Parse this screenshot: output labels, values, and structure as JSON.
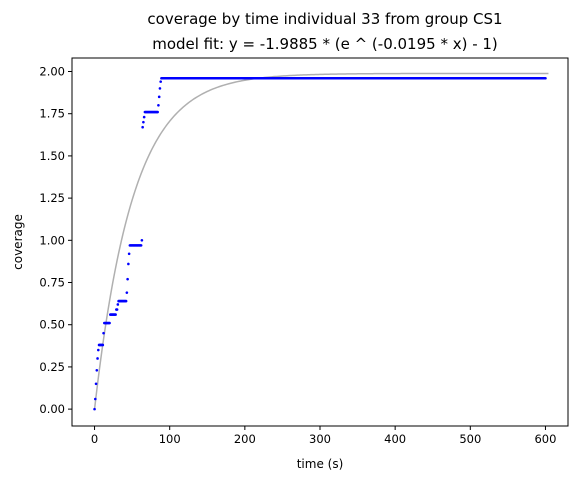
{
  "chart_data": {
    "type": "scatter",
    "title": "coverage by time individual 33 from group CS1",
    "subtitle": "model fit: y = -1.9885 * (e ^ (-0.0195 * x) - 1)",
    "xlabel": "time (s)",
    "ylabel": "coverage",
    "xlim": [
      -30,
      630
    ],
    "ylim": [
      -0.1,
      2.08
    ],
    "x_ticks": [
      0,
      100,
      200,
      300,
      400,
      500,
      600
    ],
    "y_ticks": [
      0.0,
      0.25,
      0.5,
      0.75,
      1.0,
      1.25,
      1.5,
      1.75,
      2.0
    ],
    "x_tick_labels": [
      "0",
      "100",
      "200",
      "300",
      "400",
      "500",
      "600"
    ],
    "y_tick_labels": [
      "0.00",
      "0.25",
      "0.50",
      "0.75",
      "1.00",
      "1.25",
      "1.50",
      "1.75",
      "2.00"
    ],
    "grid": false,
    "colors": {
      "observed": "#0000ff",
      "fit": "#b0b0b0"
    },
    "fit": {
      "a": -1.9885,
      "k": -0.0195,
      "x_range": [
        0,
        605
      ]
    },
    "observed_segments": [
      {
        "x_from": 0,
        "x_to": 0,
        "y": 0.0
      },
      {
        "x_from": 1,
        "x_to": 1,
        "y": 0.06
      },
      {
        "x_from": 2,
        "x_to": 2,
        "y": 0.15
      },
      {
        "x_from": 3,
        "x_to": 3,
        "y": 0.23
      },
      {
        "x_from": 4,
        "x_to": 4,
        "y": 0.3
      },
      {
        "x_from": 5,
        "x_to": 5,
        "y": 0.35
      },
      {
        "x_from": 6,
        "x_to": 11,
        "y": 0.38
      },
      {
        "x_from": 12,
        "x_to": 12,
        "y": 0.45
      },
      {
        "x_from": 13,
        "x_to": 20,
        "y": 0.51
      },
      {
        "x_from": 21,
        "x_to": 28,
        "y": 0.56
      },
      {
        "x_from": 29,
        "x_to": 30,
        "y": 0.59
      },
      {
        "x_from": 31,
        "x_to": 31,
        "y": 0.62
      },
      {
        "x_from": 32,
        "x_to": 42,
        "y": 0.64
      },
      {
        "x_from": 43,
        "x_to": 43,
        "y": 0.69
      },
      {
        "x_from": 44,
        "x_to": 44,
        "y": 0.77
      },
      {
        "x_from": 45,
        "x_to": 45,
        "y": 0.86
      },
      {
        "x_from": 46,
        "x_to": 46,
        "y": 0.92
      },
      {
        "x_from": 47,
        "x_to": 62,
        "y": 0.97
      },
      {
        "x_from": 63,
        "x_to": 63,
        "y": 1.0
      },
      {
        "x_from": 64,
        "x_to": 64,
        "y": 1.67
      },
      {
        "x_from": 65,
        "x_to": 65,
        "y": 1.7
      },
      {
        "x_from": 66,
        "x_to": 66,
        "y": 1.73
      },
      {
        "x_from": 67,
        "x_to": 84,
        "y": 1.76
      },
      {
        "x_from": 85,
        "x_to": 85,
        "y": 1.8
      },
      {
        "x_from": 86,
        "x_to": 86,
        "y": 1.85
      },
      {
        "x_from": 87,
        "x_to": 87,
        "y": 1.9
      },
      {
        "x_from": 88,
        "x_to": 88,
        "y": 1.94
      },
      {
        "x_from": 89,
        "x_to": 600,
        "y": 1.96
      }
    ]
  }
}
